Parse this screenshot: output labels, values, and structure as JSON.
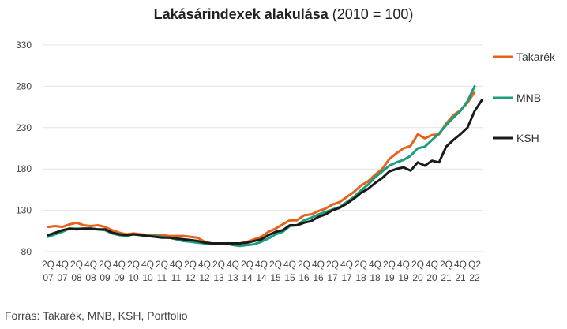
{
  "chart_data": {
    "type": "line",
    "title_bold": "Lakásárindexek alakulása",
    "title_rest": " (2010 = 100)",
    "source": "Forrás: Takarék, MNB, KSH, Portfolio",
    "ylim": [
      80,
      330
    ],
    "yticks": [
      80,
      130,
      180,
      230,
      280,
      330
    ],
    "grid": true,
    "legend": "right",
    "x_ticks": [
      {
        "q": "2Q",
        "y": "07"
      },
      {
        "q": "4Q",
        "y": "07"
      },
      {
        "q": "2Q",
        "y": "08"
      },
      {
        "q": "4Q",
        "y": "08"
      },
      {
        "q": "2Q",
        "y": "09"
      },
      {
        "q": "4Q",
        "y": "09"
      },
      {
        "q": "2Q",
        "y": "10"
      },
      {
        "q": "4Q",
        "y": "10"
      },
      {
        "q": "2Q",
        "y": "11"
      },
      {
        "q": "4Q",
        "y": "11"
      },
      {
        "q": "2Q",
        "y": "12"
      },
      {
        "q": "4Q",
        "y": "12"
      },
      {
        "q": "2Q",
        "y": "13"
      },
      {
        "q": "4Q",
        "y": "13"
      },
      {
        "q": "2Q",
        "y": "14"
      },
      {
        "q": "4Q",
        "y": "14"
      },
      {
        "q": "2Q",
        "y": "15"
      },
      {
        "q": "4Q",
        "y": "15"
      },
      {
        "q": "2Q",
        "y": "16"
      },
      {
        "q": "4Q",
        "y": "16"
      },
      {
        "q": "2Q",
        "y": "17"
      },
      {
        "q": "4Q",
        "y": "17"
      },
      {
        "q": "2Q",
        "y": "18"
      },
      {
        "q": "4Q",
        "y": "18"
      },
      {
        "q": "2Q",
        "y": "19"
      },
      {
        "q": "4Q",
        "y": "19"
      },
      {
        "q": "2Q",
        "y": "20"
      },
      {
        "q": "4Q",
        "y": "20"
      },
      {
        "q": "2Q",
        "y": "21"
      },
      {
        "q": "4Q",
        "y": "21"
      },
      {
        "q": "Q2",
        "y": "22"
      }
    ],
    "x": [
      "2007Q2",
      "2007Q3",
      "2007Q4",
      "2008Q1",
      "2008Q2",
      "2008Q3",
      "2008Q4",
      "2009Q1",
      "2009Q2",
      "2009Q3",
      "2009Q4",
      "2010Q1",
      "2010Q2",
      "2010Q3",
      "2010Q4",
      "2011Q1",
      "2011Q2",
      "2011Q3",
      "2011Q4",
      "2012Q1",
      "2012Q2",
      "2012Q3",
      "2012Q4",
      "2013Q1",
      "2013Q2",
      "2013Q3",
      "2013Q4",
      "2014Q1",
      "2014Q2",
      "2014Q3",
      "2014Q4",
      "2015Q1",
      "2015Q2",
      "2015Q3",
      "2015Q4",
      "2016Q1",
      "2016Q2",
      "2016Q3",
      "2016Q4",
      "2017Q1",
      "2017Q2",
      "2017Q3",
      "2017Q4",
      "2018Q1",
      "2018Q2",
      "2018Q3",
      "2018Q4",
      "2019Q1",
      "2019Q2",
      "2019Q3",
      "2019Q4",
      "2020Q1",
      "2020Q2",
      "2020Q3",
      "2020Q4",
      "2021Q1",
      "2021Q2",
      "2021Q3",
      "2021Q4",
      "2022Q1",
      "2022Q2",
      "2022Q3"
    ],
    "series": [
      {
        "name": "Takarék",
        "color": "#E8611A",
        "values": [
          110,
          111,
          110,
          113,
          115,
          112,
          111,
          112,
          110,
          106,
          103,
          101,
          102,
          101,
          100,
          100,
          100,
          99,
          99,
          99,
          98,
          97,
          92,
          90,
          90,
          90,
          90,
          90,
          92,
          95,
          98,
          104,
          108,
          113,
          118,
          118,
          124,
          125,
          129,
          132,
          137,
          140,
          146,
          152,
          160,
          165,
          173,
          180,
          192,
          199,
          205,
          208,
          222,
          217,
          221,
          222,
          235,
          245,
          251,
          260,
          273,
          null
        ],
        "highlight": false
      },
      {
        "name": "MNB",
        "color": "#1A9E7E",
        "values": [
          98,
          101,
          104,
          108,
          108,
          108,
          108,
          107,
          106,
          102,
          100,
          99,
          101,
          100,
          99,
          99,
          98,
          97,
          95,
          93,
          92,
          91,
          90,
          89,
          90,
          90,
          88,
          87,
          88,
          89,
          92,
          96,
          101,
          104,
          111,
          112,
          118,
          121,
          125,
          128,
          131,
          134,
          140,
          146,
          154,
          161,
          170,
          177,
          184,
          188,
          191,
          196,
          205,
          207,
          215,
          223,
          233,
          242,
          250,
          262,
          280,
          null
        ],
        "highlight": false
      },
      {
        "name": "KSH",
        "color": "#1A1A1A",
        "values": [
          100,
          103,
          106,
          108,
          107,
          108,
          108,
          107,
          107,
          103,
          101,
          100,
          101,
          100,
          99,
          98,
          97,
          97,
          96,
          95,
          94,
          93,
          91,
          90,
          90,
          90,
          90,
          90,
          91,
          93,
          95,
          100,
          104,
          106,
          112,
          112,
          115,
          117,
          122,
          125,
          130,
          133,
          138,
          144,
          151,
          156,
          163,
          169,
          177,
          180,
          182,
          178,
          188,
          184,
          190,
          188,
          207,
          215,
          222,
          230,
          250,
          263
        ],
        "highlight": false
      }
    ]
  }
}
